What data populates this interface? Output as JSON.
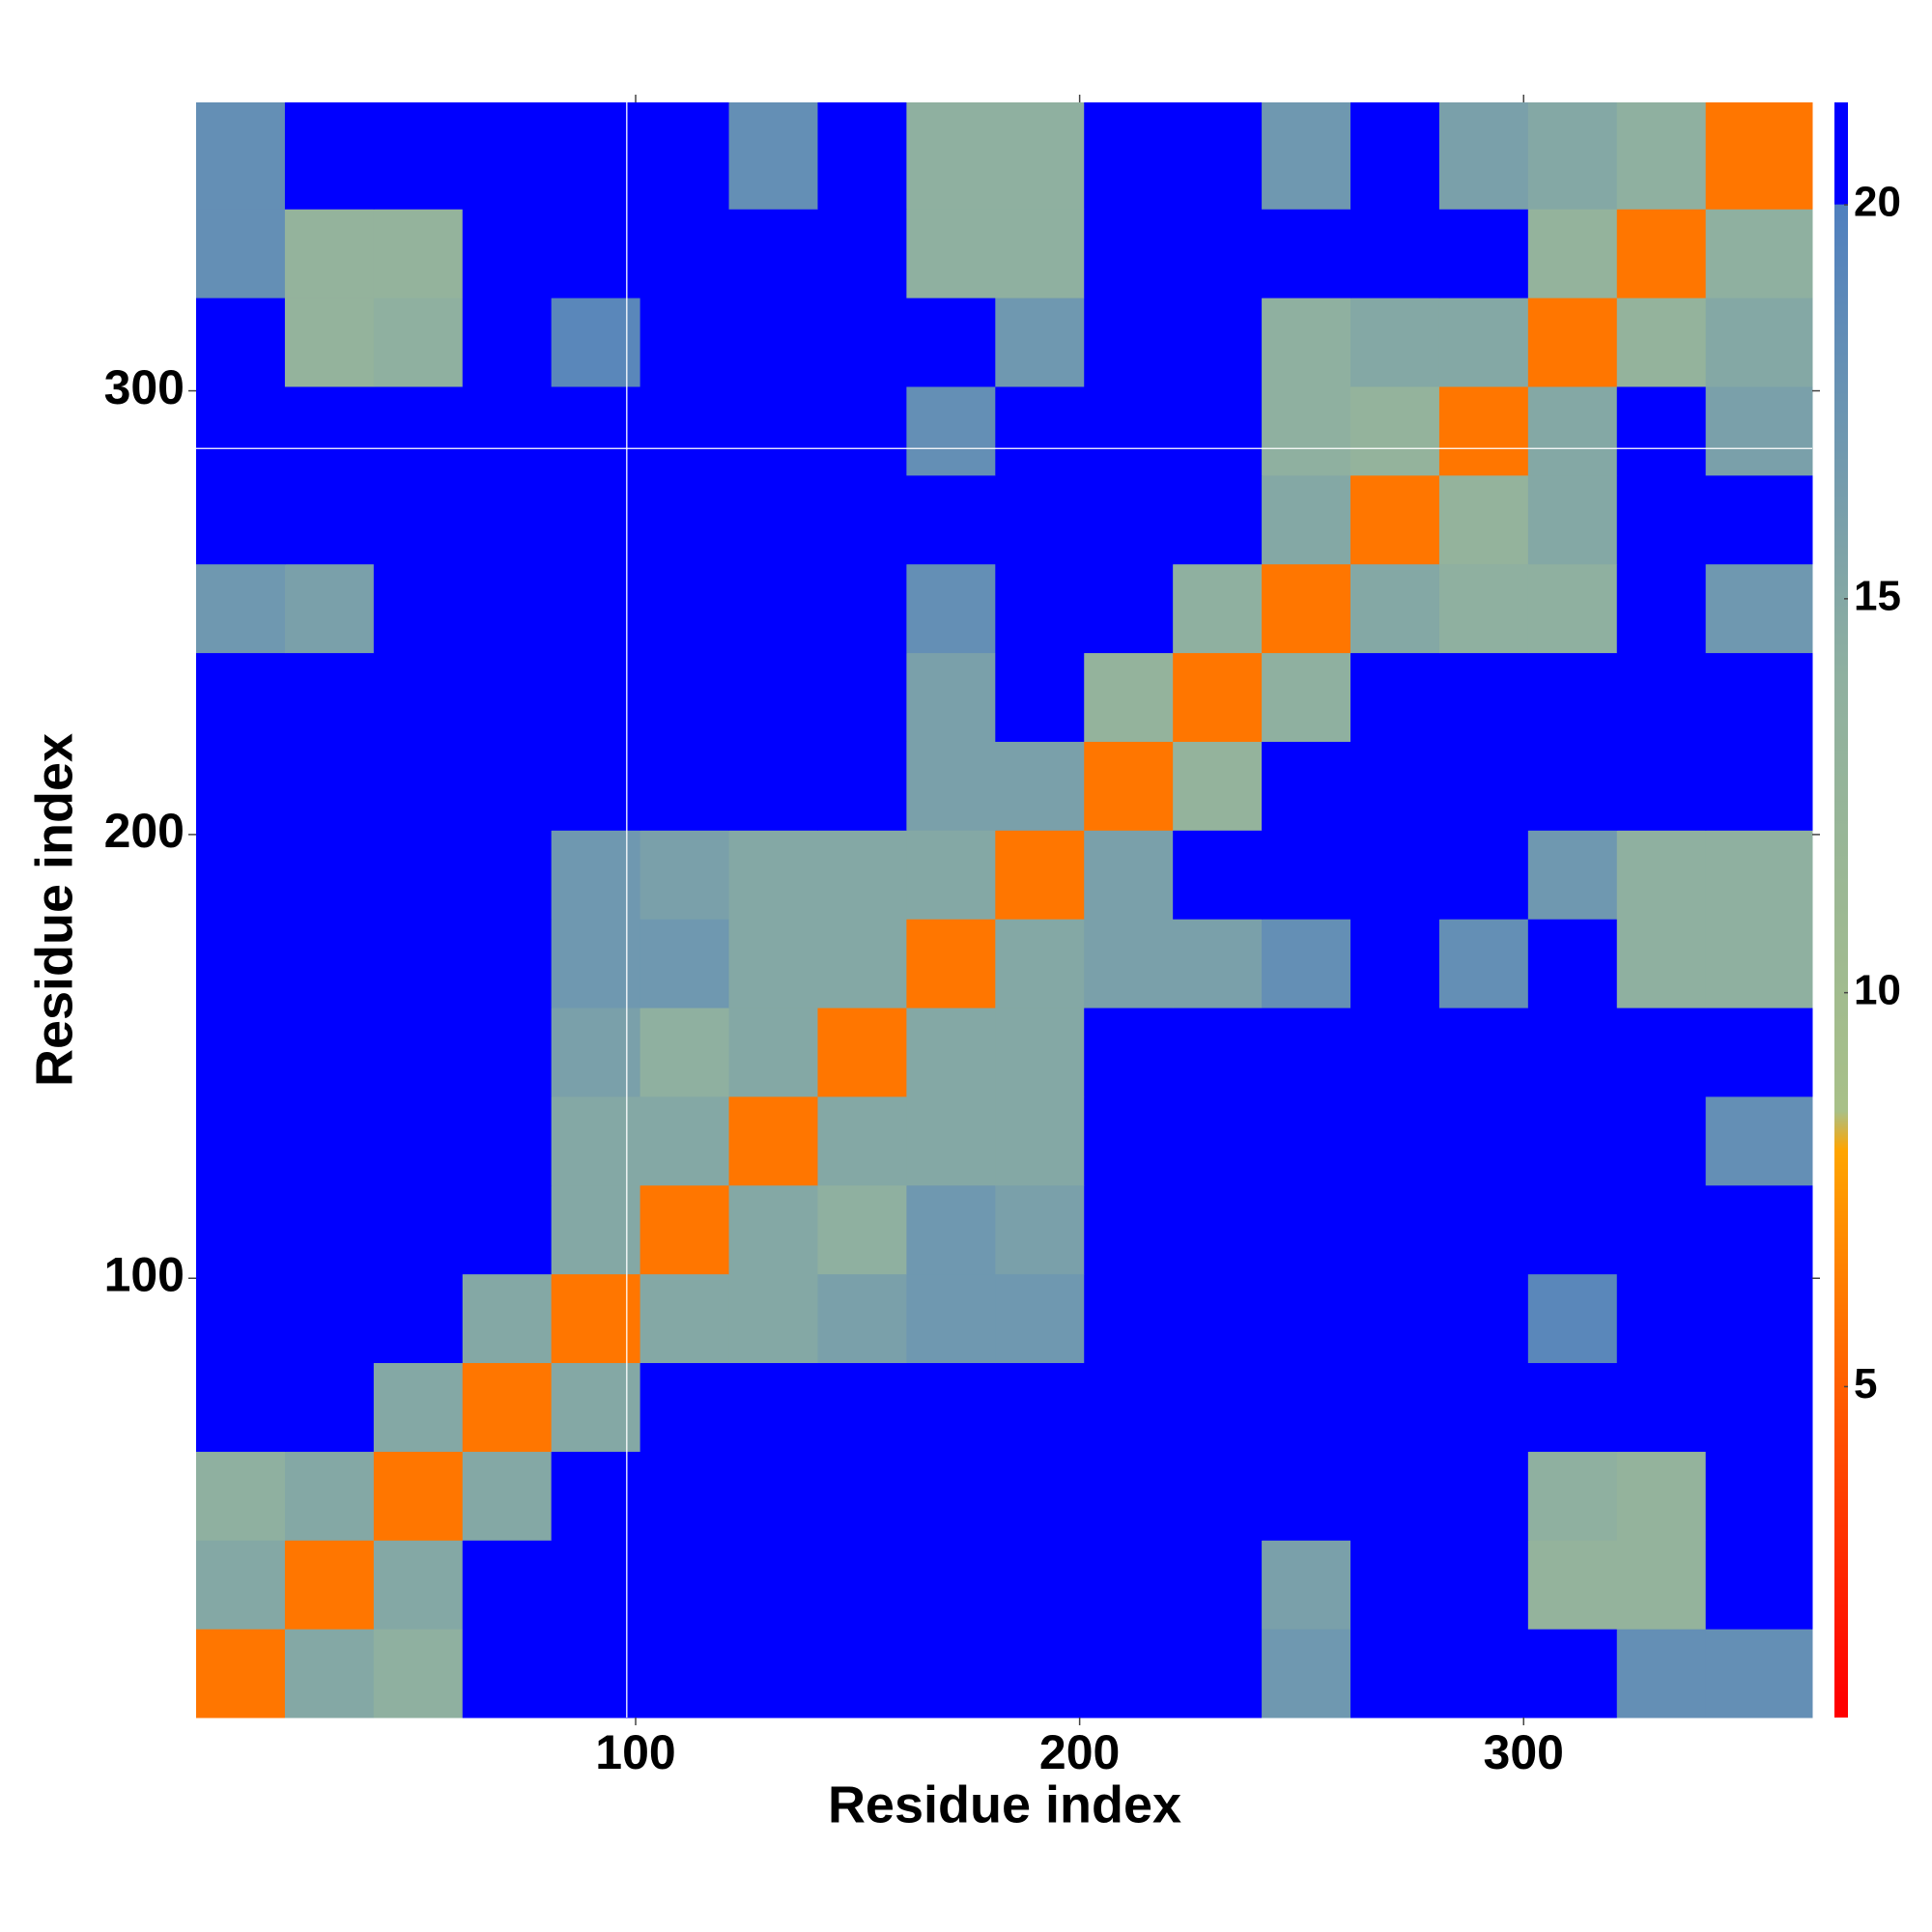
{
  "chart_data": {
    "type": "heatmap",
    "x_label": "Residue index",
    "y_label": "Residue index",
    "xlim": [
      1,
      365
    ],
    "ylim": [
      1,
      365
    ],
    "xticks": [
      100,
      200,
      300
    ],
    "yticks": [
      100,
      200,
      300
    ],
    "xbins": [
      1,
      21,
      41,
      61,
      81,
      101,
      121,
      141,
      161,
      181,
      201,
      221,
      241,
      261,
      281,
      301,
      321,
      341,
      365
    ],
    "ybins": [
      1,
      21,
      41,
      61,
      81,
      101,
      121,
      141,
      161,
      181,
      201,
      221,
      241,
      261,
      281,
      301,
      321,
      341,
      365
    ],
    "z": [
      [
        6,
        15,
        14,
        21,
        21,
        21,
        21,
        21,
        21,
        21,
        21,
        21,
        17,
        21,
        21,
        21,
        18,
        18
      ],
      [
        15,
        6,
        15,
        21,
        21,
        21,
        21,
        21,
        21,
        21,
        21,
        21,
        16,
        21,
        21,
        13,
        13,
        21
      ],
      [
        14,
        15,
        6,
        15,
        21,
        21,
        21,
        21,
        21,
        21,
        21,
        21,
        21,
        21,
        21,
        14,
        13,
        21
      ],
      [
        21,
        21,
        15,
        6,
        15,
        21,
        21,
        21,
        21,
        21,
        21,
        21,
        21,
        21,
        21,
        21,
        21,
        21
      ],
      [
        21,
        21,
        21,
        15,
        6,
        15,
        15,
        16,
        17,
        17,
        21,
        21,
        21,
        21,
        21,
        19,
        21,
        21
      ],
      [
        21,
        21,
        21,
        21,
        15,
        6,
        15,
        14,
        17,
        16,
        21,
        21,
        21,
        21,
        21,
        21,
        21,
        21
      ],
      [
        21,
        21,
        21,
        21,
        15,
        15,
        6,
        15,
        15,
        15,
        21,
        21,
        21,
        21,
        21,
        21,
        21,
        18
      ],
      [
        21,
        21,
        21,
        21,
        16,
        14,
        15,
        6,
        15,
        15,
        21,
        21,
        21,
        21,
        21,
        21,
        21,
        21
      ],
      [
        21,
        21,
        21,
        21,
        17,
        17,
        15,
        15,
        6,
        15,
        16,
        16,
        18,
        21,
        18,
        21,
        14,
        14
      ],
      [
        21,
        21,
        21,
        21,
        17,
        16,
        15,
        15,
        15,
        6,
        16,
        21,
        21,
        21,
        21,
        17,
        14,
        14
      ],
      [
        21,
        21,
        21,
        21,
        21,
        21,
        21,
        21,
        16,
        16,
        6,
        13,
        21,
        21,
        21,
        21,
        21,
        21
      ],
      [
        21,
        21,
        21,
        21,
        21,
        21,
        21,
        21,
        16,
        21,
        13,
        6,
        14,
        21,
        21,
        21,
        21,
        21
      ],
      [
        17,
        16,
        21,
        21,
        21,
        21,
        21,
        21,
        18,
        21,
        21,
        14,
        6,
        15,
        14,
        14,
        21,
        17
      ],
      [
        21,
        21,
        21,
        21,
        21,
        21,
        21,
        21,
        21,
        21,
        21,
        21,
        15,
        6,
        13,
        15,
        21,
        21
      ],
      [
        21,
        21,
        21,
        21,
        21,
        21,
        21,
        21,
        18,
        21,
        21,
        21,
        14,
        13,
        6,
        15,
        21,
        16
      ],
      [
        21,
        13,
        14,
        21,
        19,
        21,
        21,
        21,
        21,
        17,
        21,
        21,
        14,
        15,
        15,
        6,
        13,
        15
      ],
      [
        18,
        13,
        13,
        21,
        21,
        21,
        21,
        21,
        14,
        14,
        21,
        21,
        21,
        21,
        21,
        13,
        6,
        14
      ],
      [
        18,
        21,
        21,
        21,
        21,
        21,
        18,
        21,
        14,
        14,
        21,
        21,
        17,
        21,
        16,
        15,
        14,
        6
      ]
    ],
    "colorscale": [
      [
        1,
        "#ff0000"
      ],
      [
        8,
        "#ffa500"
      ],
      [
        8.5,
        "#a8c088"
      ],
      [
        14,
        "#8fb0a0"
      ],
      [
        20,
        "#4f7fbf"
      ],
      [
        20.01,
        "#0000ff"
      ]
    ],
    "colorbar_lim": [
      0.8,
      21.3
    ],
    "colorbar_ticks": [
      5,
      10,
      15,
      20
    ],
    "vlines": [
      98
    ],
    "hlines": [
      287
    ],
    "line_color": "#ffffff"
  }
}
